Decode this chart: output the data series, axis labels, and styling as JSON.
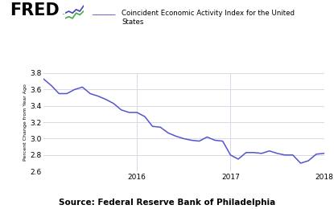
{
  "title_legend": "Coincident Economic Activity Index for the United\nStates",
  "ylabel": "Percent Change from Year Ago",
  "source": "Source: Federal Reserve Bank of Philadelphia",
  "line_color": "#5555cc",
  "ylim": [
    2.6,
    3.8
  ],
  "yticks": [
    2.6,
    2.8,
    3.0,
    3.2,
    3.4,
    3.6,
    3.8
  ],
  "xtick_labels": [
    "2016",
    "2017",
    "2018"
  ],
  "x_values": [
    0,
    1,
    2,
    3,
    4,
    5,
    6,
    7,
    8,
    9,
    10,
    11,
    12,
    13,
    14,
    15,
    16,
    17,
    18,
    19,
    20,
    21,
    22,
    23,
    24,
    25,
    26,
    27,
    28,
    29,
    30,
    31,
    32,
    33,
    34,
    35,
    36
  ],
  "y_values": [
    3.73,
    3.65,
    3.55,
    3.55,
    3.6,
    3.63,
    3.55,
    3.52,
    3.48,
    3.43,
    3.35,
    3.32,
    3.32,
    3.27,
    3.15,
    3.14,
    3.07,
    3.03,
    3.0,
    2.98,
    2.97,
    3.02,
    2.98,
    2.97,
    2.8,
    2.75,
    2.83,
    2.83,
    2.82,
    2.85,
    2.82,
    2.8,
    2.8,
    2.7,
    2.73,
    2.81,
    2.82
  ],
  "x_tick_positions": [
    12,
    24,
    36
  ],
  "grid_color": "#d8d8e8",
  "background_color": "#ffffff"
}
